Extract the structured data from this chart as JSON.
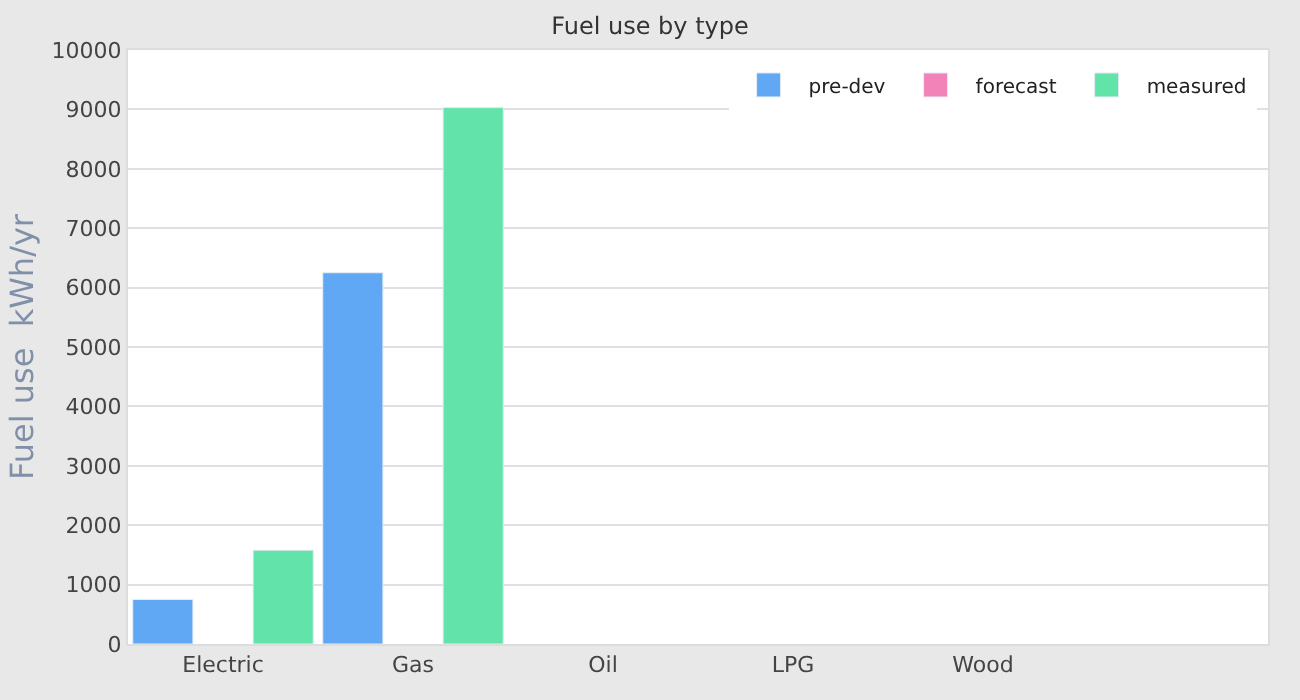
{
  "chart_data": {
    "type": "bar",
    "title": "Fuel use by type",
    "ylabel": "Fuel use  kWh/yr",
    "categories": [
      "Electric",
      "Gas",
      "Oil",
      "LPG",
      "Wood",
      null
    ],
    "series": [
      {
        "name": "pre-dev",
        "color": "#60a8f4",
        "values": [
          750,
          6250,
          null,
          null,
          null,
          null
        ]
      },
      {
        "name": "forecast",
        "color": "#f283b8",
        "values": [
          null,
          null,
          null,
          null,
          null,
          null
        ]
      },
      {
        "name": "measured",
        "color": "#62e3aa",
        "values": [
          1580,
          9030,
          null,
          null,
          null,
          null
        ]
      }
    ],
    "ylim": [
      0,
      10000
    ],
    "yticks": [
      0,
      1000,
      2000,
      3000,
      4000,
      5000,
      6000,
      7000,
      8000,
      9000,
      10000
    ],
    "grid": "y",
    "legend": "top right"
  }
}
